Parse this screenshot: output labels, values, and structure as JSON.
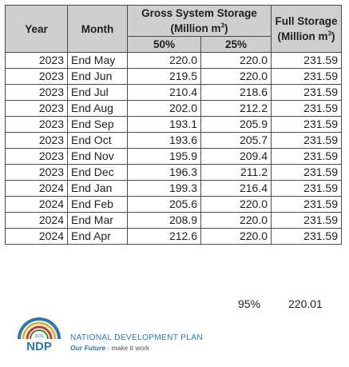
{
  "header": {
    "year": "Year",
    "month": "Month",
    "gross_title": "Gross System Storage",
    "gross_unit_prefix": "(Million m",
    "gross_unit_exp": "3",
    "gross_unit_suffix": ")",
    "full_title": "Full Storage",
    "full_unit_prefix": "(Million m",
    "full_unit_exp": "3",
    "full_unit_suffix": ")",
    "col_50": "50%",
    "col_25": "25%"
  },
  "rows": [
    {
      "year": "2023",
      "month": "End May",
      "p50": "220.0",
      "p25": "220.0",
      "full": "231.59"
    },
    {
      "year": "2023",
      "month": "End Jun",
      "p50": "219.5",
      "p25": "220.0",
      "full": "231.59"
    },
    {
      "year": "2023",
      "month": "End Jul",
      "p50": "210.4",
      "p25": "218.6",
      "full": "231.59"
    },
    {
      "year": "2023",
      "month": "End Aug",
      "p50": "202.0",
      "p25": "212.2",
      "full": "231.59"
    },
    {
      "year": "2023",
      "month": "End Sep",
      "p50": "193.1",
      "p25": "205.9",
      "full": "231.59"
    },
    {
      "year": "2023",
      "month": "End Oct",
      "p50": "193.6",
      "p25": "205.7",
      "full": "231.59"
    },
    {
      "year": "2023",
      "month": "End Nov",
      "p50": "195.9",
      "p25": "209.4",
      "full": "231.59"
    },
    {
      "year": "2023",
      "month": "End Dec",
      "p50": "196.3",
      "p25": "211.2",
      "full": "231.59"
    },
    {
      "year": "2024",
      "month": "End Jan",
      "p50": "199.3",
      "p25": "216.4",
      "full": "231.59"
    },
    {
      "year": "2024",
      "month": "End Feb",
      "p50": "205.6",
      "p25": "220.0",
      "full": "231.59"
    },
    {
      "year": "2024",
      "month": "End Mar",
      "p50": "208.9",
      "p25": "220.0",
      "full": "231.59"
    },
    {
      "year": "2024",
      "month": "End Apr",
      "p50": "212.6",
      "p25": "220.0",
      "full": "231.59"
    }
  ],
  "footer": {
    "percent": "95%",
    "value": "220.01"
  },
  "logo": {
    "mark_text": "NDP",
    "mark_year": "2030",
    "name": "NATIONAL DEVELOPMENT PLAN",
    "tagline_strong": "Our Future",
    "tagline_rest": " - make it work"
  },
  "colors": {
    "header_bg": "#cfcfcf",
    "border": "#4a4a4a",
    "logo_blue": "#2a78b5",
    "logo_red": "#c0392b",
    "logo_yellow": "#e6b422",
    "logo_green": "#2e8b3a"
  }
}
